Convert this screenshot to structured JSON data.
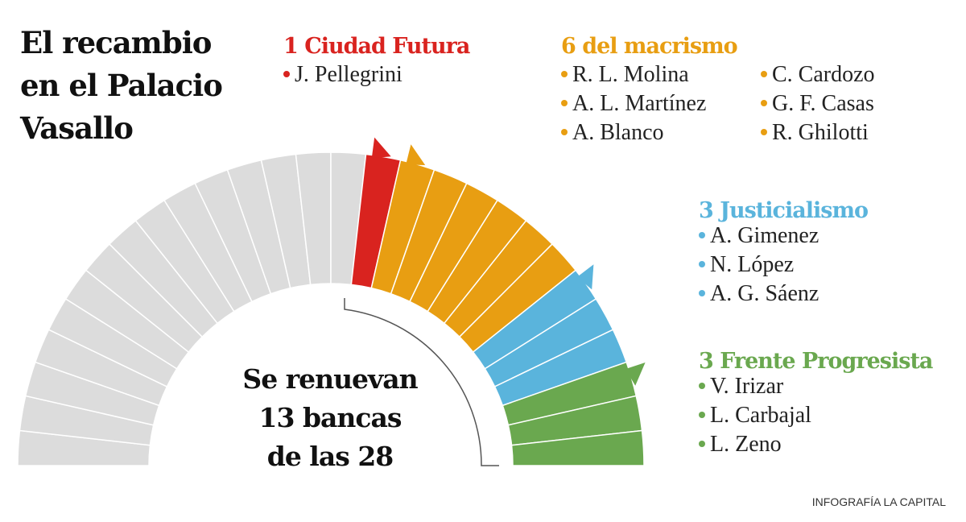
{
  "type": "parliament",
  "title_lines": [
    "El recambio",
    "en el Palacio",
    "Vasallo"
  ],
  "center": {
    "line1": "Se renuevan",
    "renewed": 13,
    "line2_word": "bancas",
    "line3_words": "de las",
    "total": 28
  },
  "rest_color": "#dcdcdc",
  "groups": [
    {
      "count": 1,
      "name": "Ciudad Futura",
      "color": "#d9231f",
      "members": [
        "J. Pellegrini"
      ]
    },
    {
      "count": 6,
      "name": "del macrismo",
      "color": "#e89e12",
      "members": [
        "R. L. Molina",
        "A. L. Martínez",
        "A. Blanco",
        "C. Cardozo",
        "G. F. Casas",
        "R. Ghilotti"
      ]
    },
    {
      "count": 3,
      "name": "Justicialismo",
      "color": "#5ab4dc",
      "members": [
        "A. Gimenez",
        "N. López",
        "A. G. Sáenz"
      ]
    },
    {
      "count": 3,
      "name": "Frente Progresista",
      "color": "#6aa84f",
      "members": [
        "V. Irizar",
        "L. Carbajal",
        "L. Zeno"
      ]
    }
  ],
  "credit": "INFOGRAFÍA LA CAPITAL"
}
